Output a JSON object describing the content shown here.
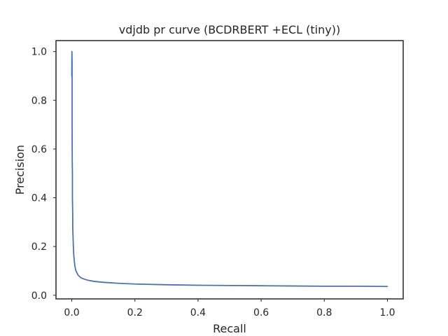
{
  "chart_data": {
    "type": "line",
    "title": "vdjdb pr curve (BCDRBERT +ECL (tiny))",
    "xlabel": "Recall",
    "ylabel": "Precision",
    "xlim": [
      -0.05,
      1.05
    ],
    "ylim": [
      -0.015,
      1.045
    ],
    "xticks": [
      0.0,
      0.2,
      0.4,
      0.6,
      0.8,
      1.0
    ],
    "xtick_labels": [
      "0.0",
      "0.2",
      "0.4",
      "0.6",
      "0.8",
      "1.0"
    ],
    "yticks": [
      0.0,
      0.2,
      0.4,
      0.6,
      0.8,
      1.0
    ],
    "ytick_labels": [
      "0.0",
      "0.2",
      "0.4",
      "0.6",
      "0.8",
      "1.0"
    ],
    "grid": false,
    "line_color": "#4c72b0",
    "series": [
      {
        "name": "",
        "x": [
          0.0,
          0.0005,
          0.001,
          0.001,
          0.0015,
          0.002,
          0.002,
          0.003,
          0.003,
          0.004,
          0.005,
          0.006,
          0.008,
          0.01,
          0.012,
          0.015,
          0.02,
          0.025,
          0.03,
          0.04,
          0.05,
          0.07,
          0.1,
          0.15,
          0.2,
          0.3,
          0.4,
          0.5,
          0.6,
          0.7,
          0.8,
          0.9,
          1.0
        ],
        "y": [
          0.9,
          1.0,
          0.95,
          0.7,
          0.55,
          0.5,
          0.4,
          0.33,
          0.28,
          0.24,
          0.2,
          0.17,
          0.14,
          0.12,
          0.105,
          0.095,
          0.083,
          0.076,
          0.071,
          0.066,
          0.062,
          0.057,
          0.053,
          0.049,
          0.046,
          0.043,
          0.041,
          0.04,
          0.039,
          0.038,
          0.037,
          0.037,
          0.036
        ]
      }
    ]
  }
}
